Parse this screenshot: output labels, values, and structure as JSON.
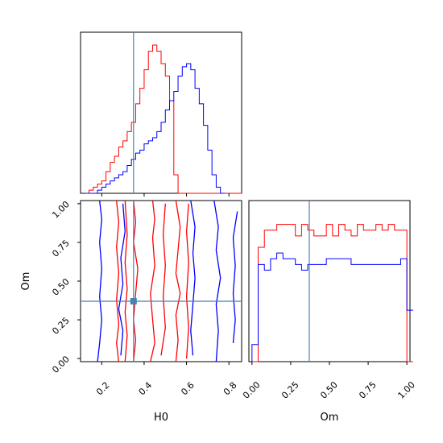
{
  "colors": {
    "red": "#ff0000",
    "blue": "#0000ff",
    "truth": "#4682b4"
  },
  "chart_data": {
    "type": "corner",
    "parameters": [
      "H0",
      "Om"
    ],
    "truths": {
      "H0": 0.35,
      "Om": 0.37
    },
    "series": [
      {
        "color": "red"
      },
      {
        "color": "blue"
      }
    ],
    "hist_H0": {
      "type": "step-histogram",
      "xlim": [
        0.1,
        0.86
      ],
      "bin_width": 0.02,
      "bin_start": 0.12,
      "red": [
        0,
        1,
        2,
        3,
        4,
        7,
        10,
        12,
        15,
        17,
        20,
        23,
        29,
        34,
        40,
        46,
        48,
        46,
        42,
        38,
        30,
        6,
        0,
        0,
        0,
        0,
        0,
        0,
        0,
        0,
        0,
        0,
        0,
        0,
        0,
        0,
        0
      ],
      "blue": [
        0,
        0,
        0,
        1,
        2,
        3,
        4,
        5,
        6,
        7,
        9,
        11,
        13,
        14,
        16,
        17,
        18,
        20,
        23,
        27,
        30,
        33,
        38,
        41,
        42,
        40,
        34,
        29,
        22,
        14,
        6,
        2,
        0
      ]
    },
    "hist_Om": {
      "type": "step-histogram",
      "xlim": [
        -0.02,
        1.02
      ],
      "bin_width": 0.04,
      "bin_start": 0.0,
      "red": [
        0,
        20,
        23,
        23,
        24,
        24,
        24,
        22,
        24,
        23,
        22,
        22,
        24,
        22,
        24,
        23,
        22,
        24,
        23,
        23,
        24,
        23,
        24,
        23,
        23,
        0
      ],
      "blue": [
        3,
        17,
        16,
        18,
        19,
        18,
        18,
        17,
        16,
        17,
        17,
        17,
        18,
        18,
        18,
        18,
        17,
        17,
        17,
        17,
        17,
        17,
        17,
        17,
        18,
        9
      ]
    },
    "joint": {
      "type": "contour",
      "xlim": [
        0.1,
        0.86
      ],
      "ylim": [
        -0.02,
        1.02
      ],
      "red_contours": [
        [
          [
            0.28,
            -0.02
          ],
          [
            0.27,
            0.1
          ],
          [
            0.28,
            0.22
          ],
          [
            0.27,
            0.38
          ],
          [
            0.28,
            0.55
          ],
          [
            0.27,
            0.72
          ],
          [
            0.28,
            0.88
          ],
          [
            0.27,
            1.02
          ]
        ],
        [
          [
            0.35,
            -0.02
          ],
          [
            0.36,
            0.12
          ],
          [
            0.35,
            0.25
          ],
          [
            0.36,
            0.42
          ],
          [
            0.37,
            0.58
          ],
          [
            0.35,
            0.75
          ],
          [
            0.36,
            0.88
          ],
          [
            0.35,
            1.02
          ]
        ],
        [
          [
            0.43,
            -0.02
          ],
          [
            0.45,
            0.1
          ],
          [
            0.44,
            0.25
          ],
          [
            0.43,
            0.42
          ],
          [
            0.45,
            0.6
          ],
          [
            0.44,
            0.78
          ],
          [
            0.45,
            0.9
          ],
          [
            0.44,
            1.02
          ]
        ],
        [
          [
            0.55,
            1.02
          ],
          [
            0.57,
            0.85
          ],
          [
            0.56,
            0.7
          ],
          [
            0.55,
            0.55
          ],
          [
            0.57,
            0.42
          ],
          [
            0.55,
            0.28
          ],
          [
            0.56,
            0.12
          ],
          [
            0.55,
            -0.02
          ]
        ],
        [
          [
            0.31,
            -0.02
          ],
          [
            0.32,
            0.15
          ],
          [
            0.31,
            0.3
          ],
          [
            0.32,
            0.45
          ],
          [
            0.31,
            0.62
          ],
          [
            0.32,
            0.8
          ],
          [
            0.31,
            1.02
          ]
        ],
        [
          [
            0.48,
            0.02
          ],
          [
            0.5,
            0.2
          ],
          [
            0.49,
            0.4
          ],
          [
            0.5,
            0.6
          ],
          [
            0.49,
            0.8
          ],
          [
            0.5,
            1.0
          ]
        ],
        [
          [
            0.6,
            0.0
          ],
          [
            0.61,
            0.2
          ],
          [
            0.6,
            0.4
          ],
          [
            0.61,
            0.62
          ],
          [
            0.6,
            0.82
          ],
          [
            0.61,
            1.0
          ]
        ]
      ],
      "blue_contours": [
        [
          [
            0.18,
            -0.02
          ],
          [
            0.19,
            0.1
          ],
          [
            0.2,
            0.25
          ],
          [
            0.19,
            0.4
          ],
          [
            0.2,
            0.58
          ],
          [
            0.19,
            0.75
          ],
          [
            0.2,
            0.9
          ],
          [
            0.19,
            1.02
          ]
        ],
        [
          [
            0.29,
            0.02
          ],
          [
            0.3,
            0.18
          ],
          [
            0.28,
            0.32
          ],
          [
            0.3,
            0.48
          ],
          [
            0.29,
            0.65
          ],
          [
            0.31,
            0.82
          ],
          [
            0.3,
            1.0
          ]
        ],
        [
          [
            0.62,
            1.02
          ],
          [
            0.64,
            0.85
          ],
          [
            0.63,
            0.68
          ],
          [
            0.64,
            0.52
          ],
          [
            0.63,
            0.35
          ],
          [
            0.62,
            0.18
          ],
          [
            0.63,
            0.02
          ]
        ],
        [
          [
            0.73,
            1.02
          ],
          [
            0.75,
            0.85
          ],
          [
            0.74,
            0.7
          ],
          [
            0.76,
            0.52
          ],
          [
            0.74,
            0.35
          ],
          [
            0.75,
            0.18
          ],
          [
            0.74,
            -0.02
          ]
        ],
        [
          [
            0.84,
            0.95
          ],
          [
            0.82,
            0.78
          ],
          [
            0.83,
            0.6
          ],
          [
            0.82,
            0.42
          ],
          [
            0.83,
            0.25
          ],
          [
            0.82,
            0.1
          ]
        ]
      ]
    },
    "ticks": {
      "H0": [
        "0.2",
        "0.4",
        "0.6",
        "0.8"
      ],
      "Om": [
        "0.00",
        "0.25",
        "0.50",
        "0.75",
        "1.00"
      ]
    },
    "xlabel_left": "H0",
    "xlabel_right": "Om",
    "ylabel_left": "Om"
  }
}
